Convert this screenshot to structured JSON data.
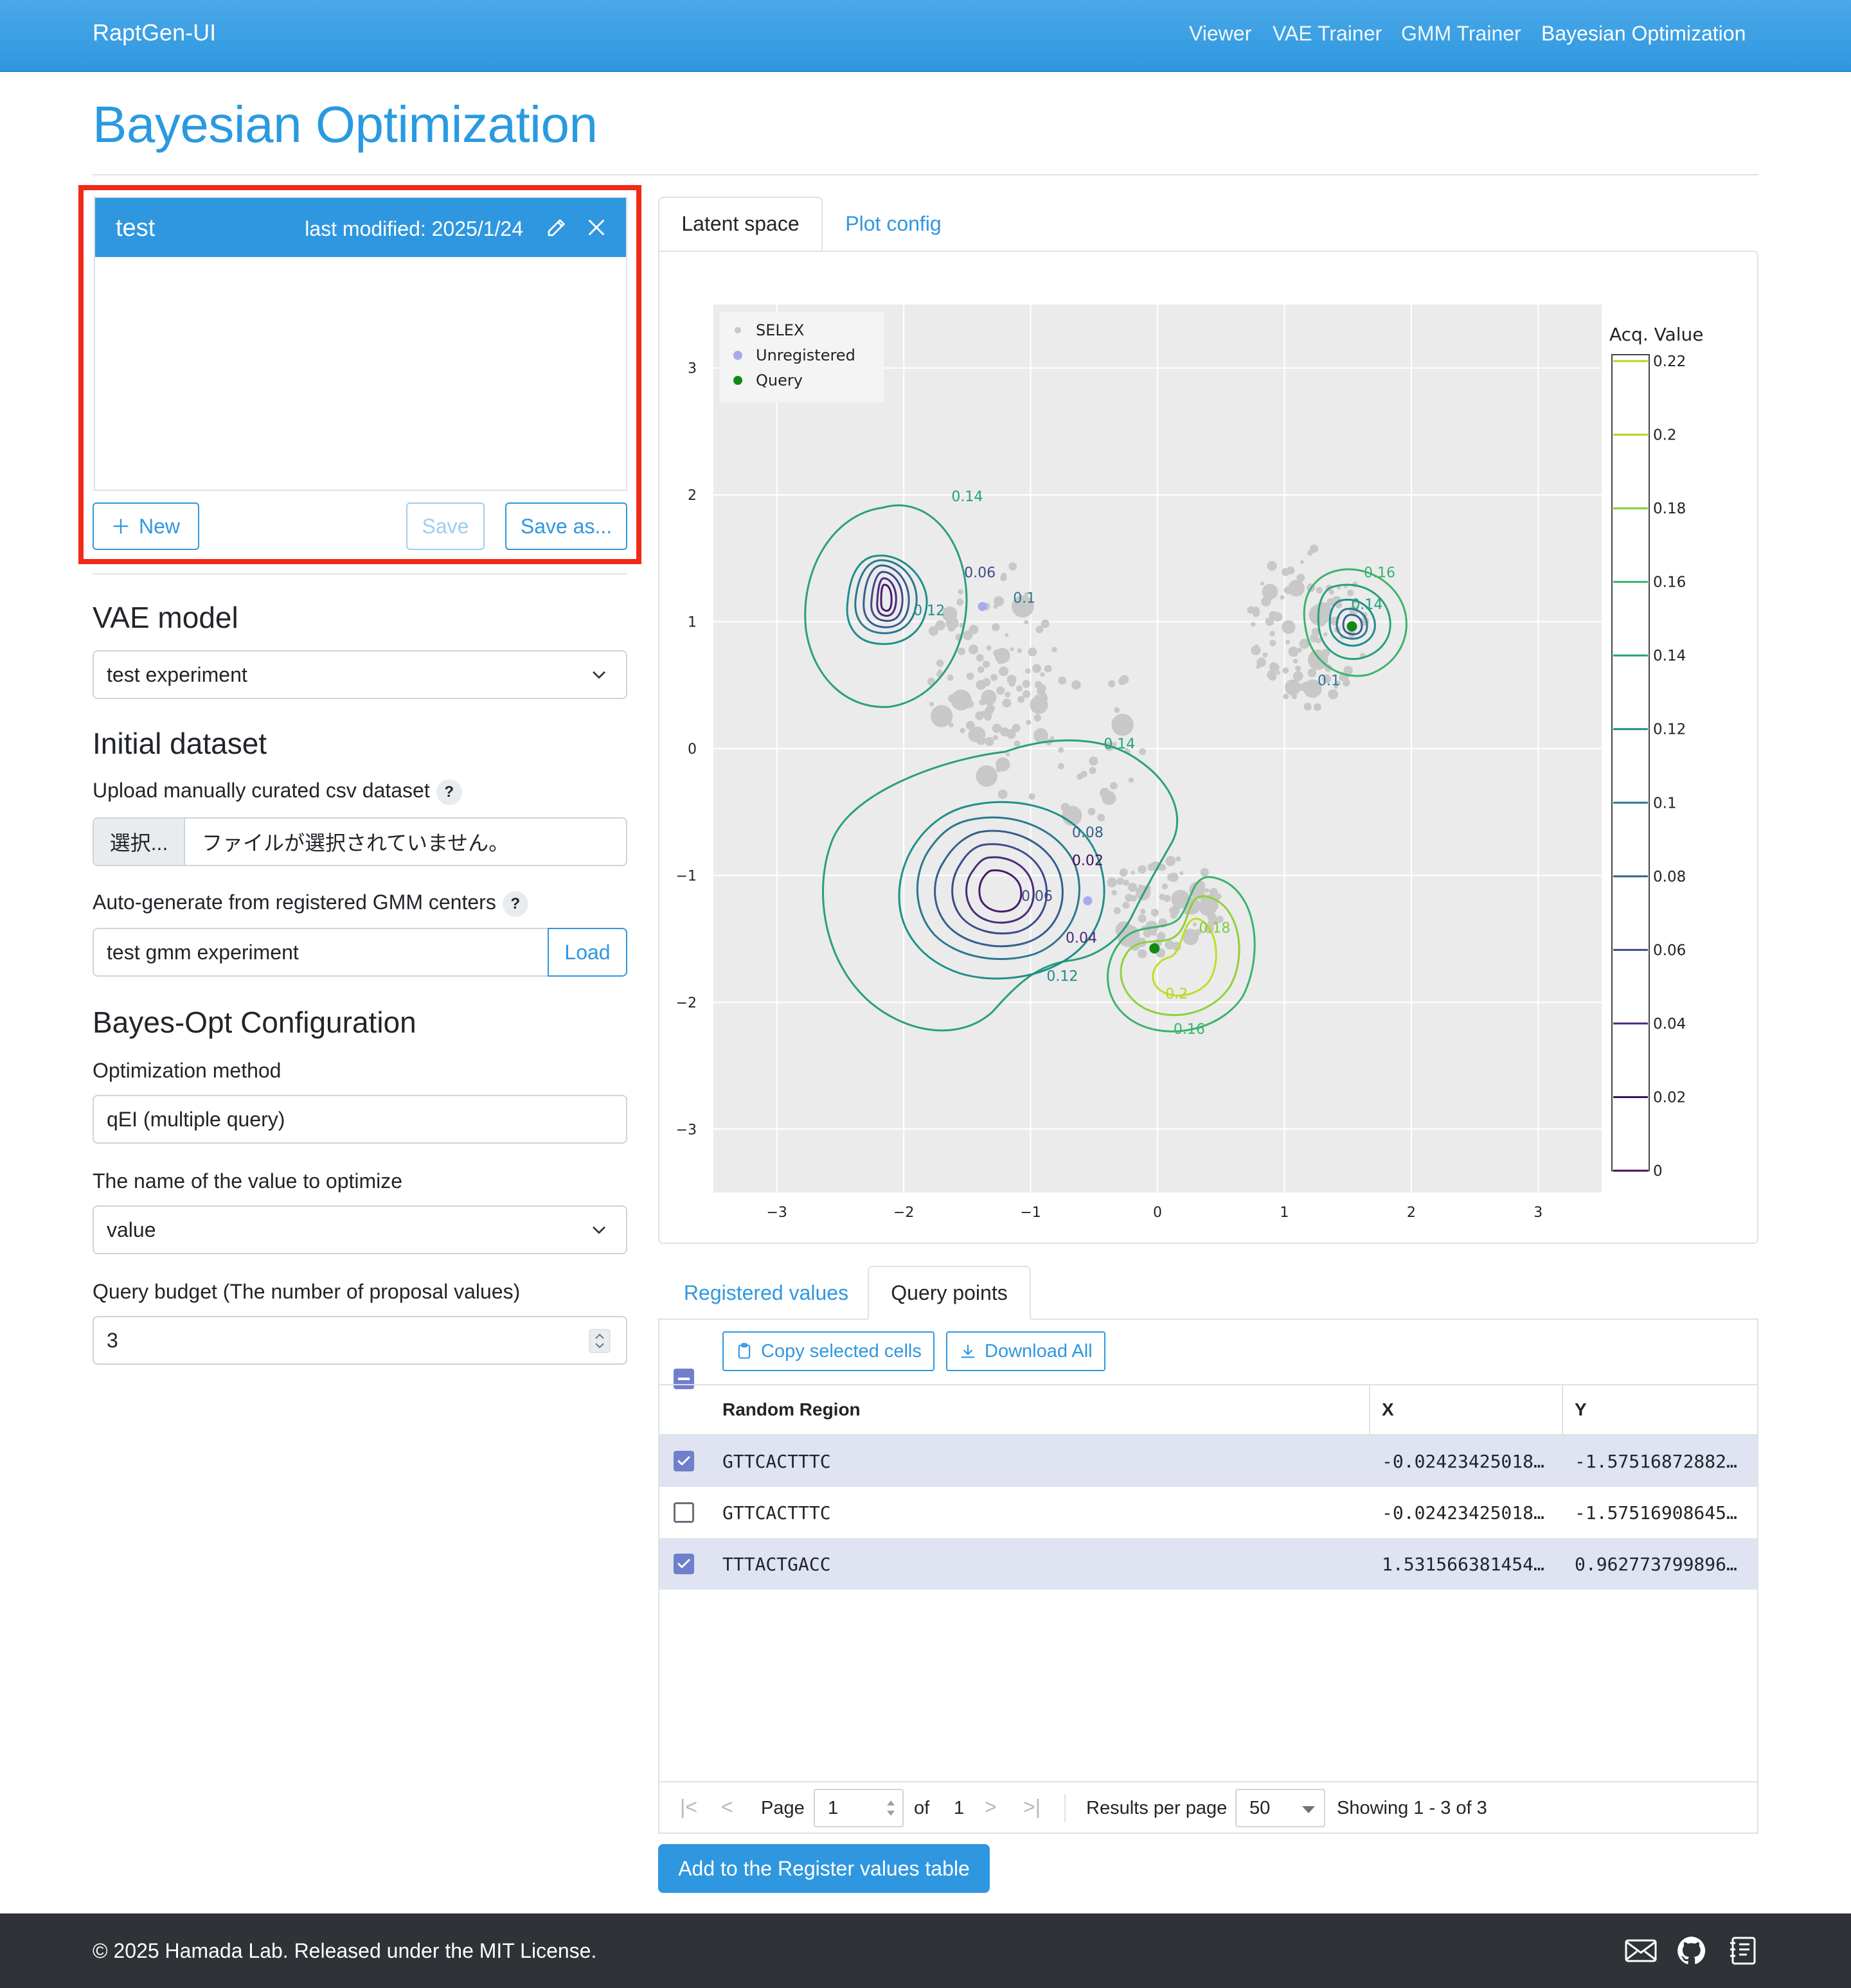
{
  "navbar": {
    "brand": "RaptGen-UI",
    "links": [
      "Viewer",
      "VAE Trainer",
      "GMM Trainer",
      "Bayesian Optimization"
    ]
  },
  "page_title": "Bayesian Optimization",
  "session": {
    "name": "test",
    "last_modified": "last modified: 2025/1/24",
    "buttons": {
      "new": "New",
      "save": "Save",
      "save_as": "Save as..."
    }
  },
  "vae_model": {
    "heading": "VAE model",
    "selected": "test experiment"
  },
  "initial_dataset": {
    "heading": "Initial dataset",
    "upload_label": "Upload manually curated csv dataset",
    "file_button": "選択...",
    "file_text": "ファイルが選択されていません。",
    "auto_label": "Auto-generate from registered GMM centers",
    "gmm_value": "test gmm experiment",
    "load_button": "Load",
    "help": "?"
  },
  "bayes_config": {
    "heading": "Bayes-Opt Configuration",
    "method_label": "Optimization method",
    "method_value": "qEI (multiple query)",
    "value_name_label": "The name of the value to optimize",
    "value_name": "value",
    "budget_label": "Query budget (The number of proposal values)",
    "budget_value": "3"
  },
  "plot_tabs": [
    "Latent space",
    "Plot config"
  ],
  "chart_data": {
    "type": "scatter",
    "title": "",
    "xlim": [
      -3.5,
      3.5
    ],
    "ylim": [
      -3.5,
      3.5
    ],
    "x_ticks": [
      -3,
      -2,
      -1,
      0,
      1,
      2,
      3
    ],
    "y_ticks": [
      3,
      2,
      1,
      0,
      -1,
      -2,
      -3
    ],
    "legend_position": "top-left",
    "legend": [
      {
        "name": "SELEX",
        "color": "#c8c8c8"
      },
      {
        "name": "Unregistered",
        "color": "#a9a9f2"
      },
      {
        "name": "Query",
        "color": "#138a13"
      }
    ],
    "colorbar": {
      "title": "Acq. Value",
      "ticks": [
        "0.22",
        "0.2",
        "0.18",
        "0.16",
        "0.14",
        "0.12",
        "0.1",
        "0.08",
        "0.06",
        "0.04",
        "0.02",
        "0"
      ],
      "range": [
        0,
        0.22
      ]
    },
    "contour_labels": [
      {
        "text": "0.14",
        "x": -1.5,
        "y": 1.95
      },
      {
        "text": "0.06",
        "x": -1.4,
        "y": 1.35
      },
      {
        "text": "0.12",
        "x": -1.8,
        "y": 1.05
      },
      {
        "text": "0.1",
        "x": -1.05,
        "y": 1.15
      },
      {
        "text": "0.16",
        "x": 1.75,
        "y": 1.35
      },
      {
        "text": "0.14",
        "x": 1.65,
        "y": 1.1
      },
      {
        "text": "0.1",
        "x": 1.35,
        "y": 0.5
      },
      {
        "text": "0.14",
        "x": -0.3,
        "y": 0.0
      },
      {
        "text": "0.08",
        "x": -0.55,
        "y": -0.7
      },
      {
        "text": "0.02",
        "x": -0.55,
        "y": -0.92
      },
      {
        "text": "0.06",
        "x": -0.95,
        "y": -1.2
      },
      {
        "text": "0.04",
        "x": -0.6,
        "y": -1.53
      },
      {
        "text": "0.12",
        "x": -0.75,
        "y": -1.83
      },
      {
        "text": "0.18",
        "x": 0.45,
        "y": -1.45
      },
      {
        "text": "0.2",
        "x": 0.15,
        "y": -1.97
      },
      {
        "text": "0.16",
        "x": 0.25,
        "y": -2.25
      }
    ],
    "query_points": [
      {
        "x": -0.024,
        "y": -1.575
      },
      {
        "x": 1.532,
        "y": 0.963
      }
    ],
    "unregistered_points": [
      {
        "x": -1.38,
        "y": 1.12
      },
      {
        "x": -0.55,
        "y": -1.2
      }
    ]
  },
  "table_tabs": [
    "Registered values",
    "Query points"
  ],
  "table": {
    "toolbar": {
      "copy": "Copy selected cells",
      "download": "Download All"
    },
    "columns": [
      "Random Region",
      "X",
      "Y"
    ],
    "rows": [
      {
        "selected": true,
        "region": "GTTCACTTTC",
        "x": "-0.02423425018…",
        "y": "-1.57516872882…"
      },
      {
        "selected": false,
        "region": "GTTCACTTTC",
        "x": "-0.02423425018…",
        "y": "-1.57516908645…"
      },
      {
        "selected": true,
        "region": "TTTACTGACC",
        "x": "1.531566381454…",
        "y": "0.962773799896…"
      }
    ],
    "pager": {
      "page_label": "Page",
      "page": "1",
      "of_label": "of",
      "total_pages": "1",
      "per_page_label": "Results per page",
      "per_page": "50",
      "showing": "Showing 1 - 3 of 3"
    }
  },
  "add_button": "Add to the Register values table",
  "footer": {
    "text": "© 2025 Hamada Lab. Released under the MIT License."
  }
}
